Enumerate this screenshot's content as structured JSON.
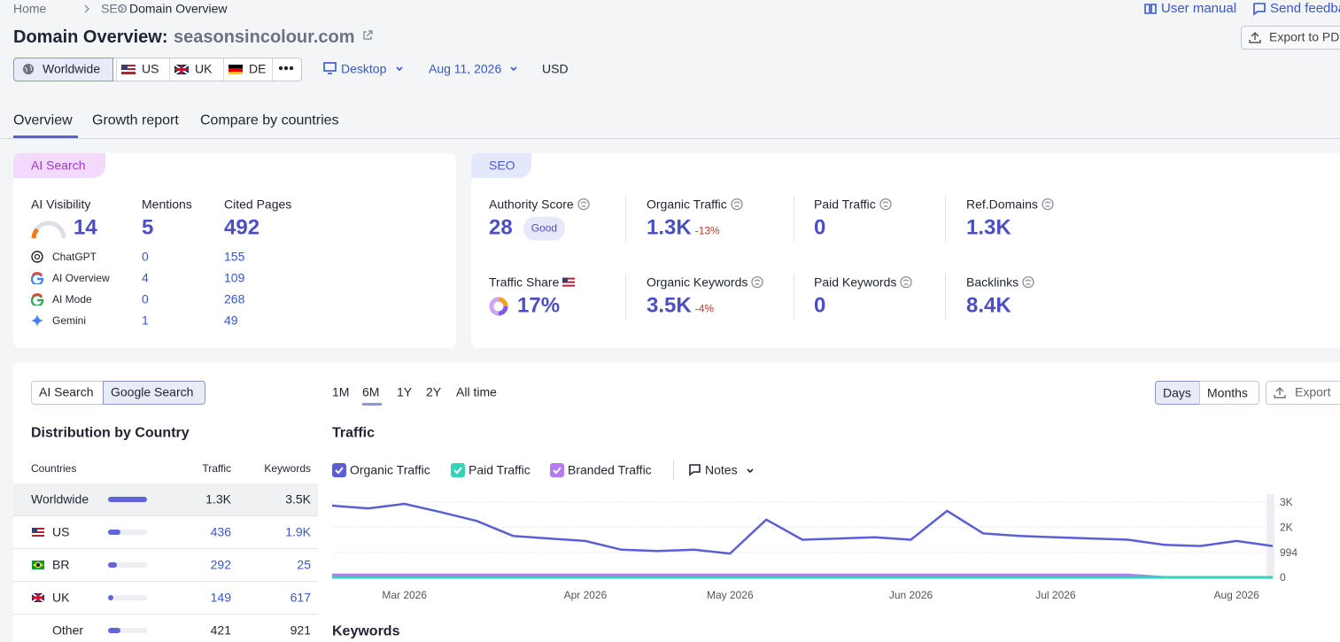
{
  "breadcrumb": [
    "Home",
    "SEO",
    "Domain Overview"
  ],
  "header": {
    "title": "Domain Overview:",
    "domain": "seasonsincolour.com",
    "links": [
      "User manual",
      "Send feedback"
    ],
    "export": "Export to PDF"
  },
  "filters": {
    "regions": [
      "Worldwide",
      "US",
      "UK",
      "DE"
    ],
    "device": "Desktop",
    "date": "Aug 11, 2026",
    "currency": "USD"
  },
  "tabs": [
    "Overview",
    "Growth report",
    "Compare by countries"
  ],
  "ai_search": {
    "label": "AI Search",
    "headers": [
      "AI Visibility",
      "Mentions",
      "Cited Pages"
    ],
    "totals": [
      14,
      5,
      492
    ],
    "rows": [
      {
        "name": "ChatGPT",
        "mentions": 0,
        "cited": 155
      },
      {
        "name": "AI Overview",
        "mentions": 4,
        "cited": 109
      },
      {
        "name": "AI Mode",
        "mentions": 0,
        "cited": 268
      },
      {
        "name": "Gemini",
        "mentions": 1,
        "cited": 49
      }
    ]
  },
  "seo": {
    "label": "SEO",
    "metrics": [
      {
        "name": "Authority Score",
        "value": 28,
        "badge": "Good"
      },
      {
        "name": "Organic Traffic",
        "value": "1.3K",
        "change": "-13%"
      },
      {
        "name": "Paid Traffic",
        "value": 0
      },
      {
        "name": "Ref.Domains",
        "value": "1.3K"
      },
      {
        "name": "Traffic Share",
        "value": "17%"
      },
      {
        "name": "Organic Keywords",
        "value": "3.5K",
        "change": "-4%"
      },
      {
        "name": "Paid Keywords",
        "value": 0
      },
      {
        "name": "Backlinks",
        "value": "8.4K"
      }
    ]
  },
  "distribution": {
    "toggle": [
      "AI Search",
      "Google Search"
    ],
    "title": "Distribution by Country",
    "columns": [
      "Countries",
      "Traffic",
      "Keywords"
    ],
    "rows": [
      [
        "Worldwide",
        "1.3K",
        "3.5K"
      ],
      [
        "US",
        436,
        "1.9K"
      ],
      [
        "BR",
        292,
        25
      ],
      [
        "UK",
        149,
        617
      ],
      [
        "Other",
        421,
        921
      ]
    ]
  },
  "chart_panel": {
    "periods": [
      "1M",
      "6M",
      "1Y",
      "2Y",
      "All time"
    ],
    "granularity": [
      "Days",
      "Months"
    ],
    "export": "Export",
    "title": "Traffic",
    "notes": "Notes",
    "next_section": "Keywords"
  },
  "chart_data": {
    "type": "line",
    "categories": [
      null,
      null,
      "Mar 2026",
      null,
      null,
      null,
      null,
      "Apr 2026",
      null,
      null,
      null,
      "May 2026",
      null,
      null,
      null,
      null,
      "Jun 2026",
      null,
      null,
      null,
      "Jul 2026",
      null,
      null,
      null,
      null,
      "Aug 2026",
      null
    ],
    "series": [
      {
        "name": "Organic Traffic",
        "color": "#5b5fd6",
        "values": [
          2860,
          2750,
          2930,
          2600,
          2250,
          1650,
          1550,
          1450,
          1100,
          1050,
          1100,
          950,
          2300,
          1500,
          1550,
          1600,
          1500,
          2650,
          1750,
          1650,
          1600,
          1550,
          1500,
          1300,
          1250,
          1450,
          1250
        ]
      },
      {
        "name": "Paid Traffic",
        "color": "#34d3b6",
        "values": [
          0,
          0,
          0,
          0,
          0,
          0,
          0,
          0,
          0,
          0,
          0,
          0,
          0,
          0,
          0,
          0,
          0,
          0,
          0,
          0,
          0,
          0,
          0,
          0,
          0,
          0,
          0
        ]
      },
      {
        "name": "Branded Traffic",
        "color": "#b47cf0",
        "values": [
          100,
          100,
          100,
          100,
          100,
          100,
          100,
          100,
          100,
          100,
          100,
          100,
          100,
          100,
          100,
          100,
          100,
          100,
          100,
          100,
          100,
          100,
          100,
          0,
          0,
          0,
          0
        ]
      }
    ],
    "ylim": [
      0,
      3000
    ],
    "yticks": [
      0,
      994,
      {
        "value": 2000,
        "label": "2K"
      },
      {
        "value": 3000,
        "label": "3K"
      }
    ],
    "grid": true
  }
}
